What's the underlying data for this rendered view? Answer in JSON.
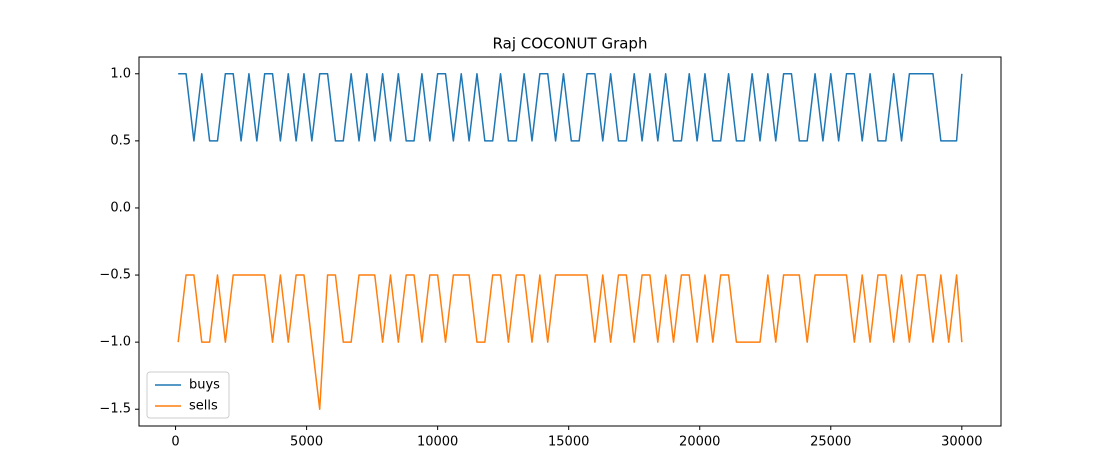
{
  "chart_data": {
    "type": "line",
    "title": "Raj COCONUT Graph",
    "x": [
      100,
      400,
      700,
      1000,
      1300,
      1600,
      1900,
      2200,
      2500,
      2800,
      3100,
      3400,
      3700,
      4000,
      4300,
      4600,
      4900,
      5200,
      5500,
      5800,
      6100,
      6400,
      6700,
      7000,
      7300,
      7600,
      7900,
      8200,
      8500,
      8800,
      9100,
      9400,
      9700,
      10000,
      10300,
      10600,
      10900,
      11200,
      11500,
      11800,
      12100,
      12400,
      12700,
      13000,
      13300,
      13600,
      13900,
      14200,
      14500,
      14800,
      15100,
      15400,
      15700,
      16000,
      16300,
      16600,
      16900,
      17200,
      17500,
      17800,
      18100,
      18400,
      18700,
      19000,
      19300,
      19600,
      19900,
      20200,
      20500,
      20800,
      21100,
      21400,
      21700,
      22000,
      22300,
      22600,
      22900,
      23200,
      23500,
      23800,
      24100,
      24400,
      24700,
      25000,
      25300,
      25600,
      25900,
      26200,
      26500,
      26800,
      27100,
      27400,
      27700,
      28000,
      28300,
      28600,
      28900,
      29200,
      29500,
      29800,
      30000
    ],
    "series": [
      {
        "name": "buys",
        "color": "#1f77b4",
        "values": [
          1,
          1,
          0.5,
          1,
          0.5,
          0.5,
          1,
          1,
          0.5,
          1,
          0.5,
          1,
          1,
          0.5,
          1,
          0.5,
          1,
          0.5,
          1,
          1,
          0.5,
          0.5,
          1,
          0.5,
          1,
          0.5,
          1,
          0.5,
          1,
          0.5,
          0.5,
          1,
          0.5,
          1,
          1,
          0.5,
          1,
          0.5,
          1,
          0.5,
          0.5,
          1,
          0.5,
          0.5,
          1,
          0.5,
          1,
          1,
          0.5,
          1,
          0.5,
          0.5,
          1,
          1,
          0.5,
          1,
          0.5,
          0.5,
          1,
          0.5,
          1,
          0.5,
          1,
          0.5,
          0.5,
          1,
          0.5,
          1,
          0.5,
          0.5,
          1,
          0.5,
          0.5,
          1,
          0.5,
          1,
          0.5,
          1,
          1,
          0.5,
          0.5,
          1,
          0.5,
          1,
          0.5,
          1,
          1,
          0.5,
          1,
          0.5,
          0.5,
          1,
          0.5,
          1,
          1,
          1,
          1,
          0.5,
          0.5,
          0.5,
          1
        ]
      },
      {
        "name": "sells",
        "color": "#ff7f0e",
        "values": [
          -1,
          -0.5,
          -0.5,
          -1,
          -1,
          -0.5,
          -1,
          -0.5,
          -0.5,
          -0.5,
          -0.5,
          -0.5,
          -1,
          -0.5,
          -1,
          -0.5,
          -0.5,
          -1,
          -1.5,
          -0.5,
          -0.5,
          -1,
          -1,
          -0.5,
          -0.5,
          -0.5,
          -1,
          -0.5,
          -1,
          -0.5,
          -0.5,
          -1,
          -0.5,
          -0.5,
          -1,
          -0.5,
          -0.5,
          -0.5,
          -1,
          -1,
          -0.5,
          -0.5,
          -1,
          -0.5,
          -0.5,
          -1,
          -0.5,
          -1,
          -0.5,
          -0.5,
          -0.5,
          -0.5,
          -0.5,
          -1,
          -0.5,
          -1,
          -0.5,
          -0.5,
          -1,
          -0.5,
          -0.5,
          -1,
          -0.5,
          -1,
          -0.5,
          -0.5,
          -1,
          -0.5,
          -1,
          -0.5,
          -0.5,
          -1,
          -1,
          -1,
          -1,
          -0.5,
          -1,
          -0.5,
          -0.5,
          -0.5,
          -1,
          -0.5,
          -0.5,
          -0.5,
          -0.5,
          -0.5,
          -1,
          -0.5,
          -1,
          -0.5,
          -0.5,
          -1,
          -0.5,
          -1,
          -0.5,
          -0.5,
          -1,
          -0.5,
          -1,
          -0.5,
          -1
        ]
      }
    ],
    "xlim": [
      -1395,
      31495
    ],
    "xticks": [
      0,
      5000,
      10000,
      15000,
      20000,
      25000,
      30000
    ],
    "ylim": [
      -1.625,
      1.125
    ],
    "yticks": [
      {
        "value": -1.5,
        "label": "−1.5"
      },
      {
        "value": -1,
        "label": "−1.0"
      },
      {
        "value": -0.5,
        "label": "−0.5"
      },
      {
        "value": 0,
        "label": "0.0"
      },
      {
        "value": 0.5,
        "label": "0.5"
      },
      {
        "value": 1,
        "label": "1.0"
      }
    ],
    "legend": "lower left"
  }
}
